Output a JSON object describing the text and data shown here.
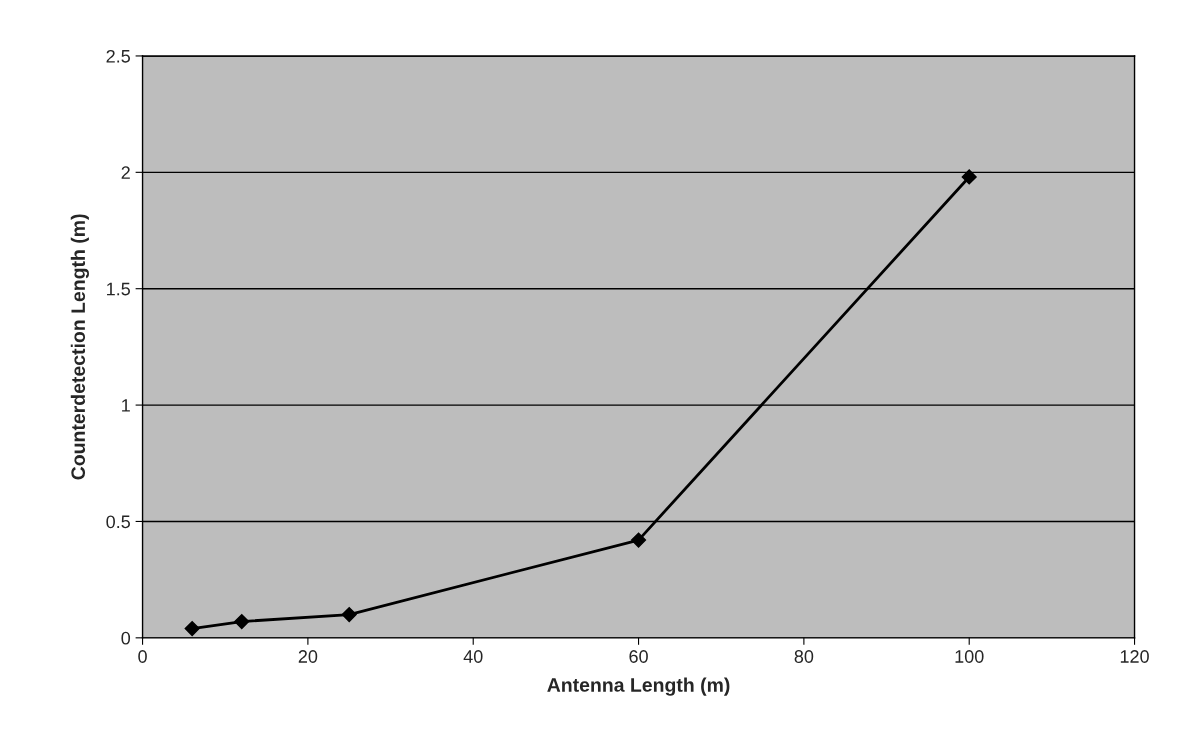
{
  "chart_data": {
    "type": "line",
    "xlabel": "Antenna Length (m)",
    "ylabel": "Counterdetection Length (m)",
    "x": [
      6,
      12,
      25,
      60,
      100
    ],
    "series": [
      {
        "color": "#000000",
        "values": [
          0.04,
          0.07,
          0.1,
          0.42,
          1.98
        ]
      }
    ],
    "xlim": [
      0,
      120
    ],
    "xticks": [
      0,
      20,
      40,
      60,
      80,
      100,
      120
    ],
    "ylim": [
      0,
      2.5
    ],
    "yticks": [
      0,
      0.5,
      1,
      1.5,
      2,
      2.5
    ],
    "grid": "y",
    "marker": "diamond",
    "line_style": "solid",
    "legend": false
  }
}
